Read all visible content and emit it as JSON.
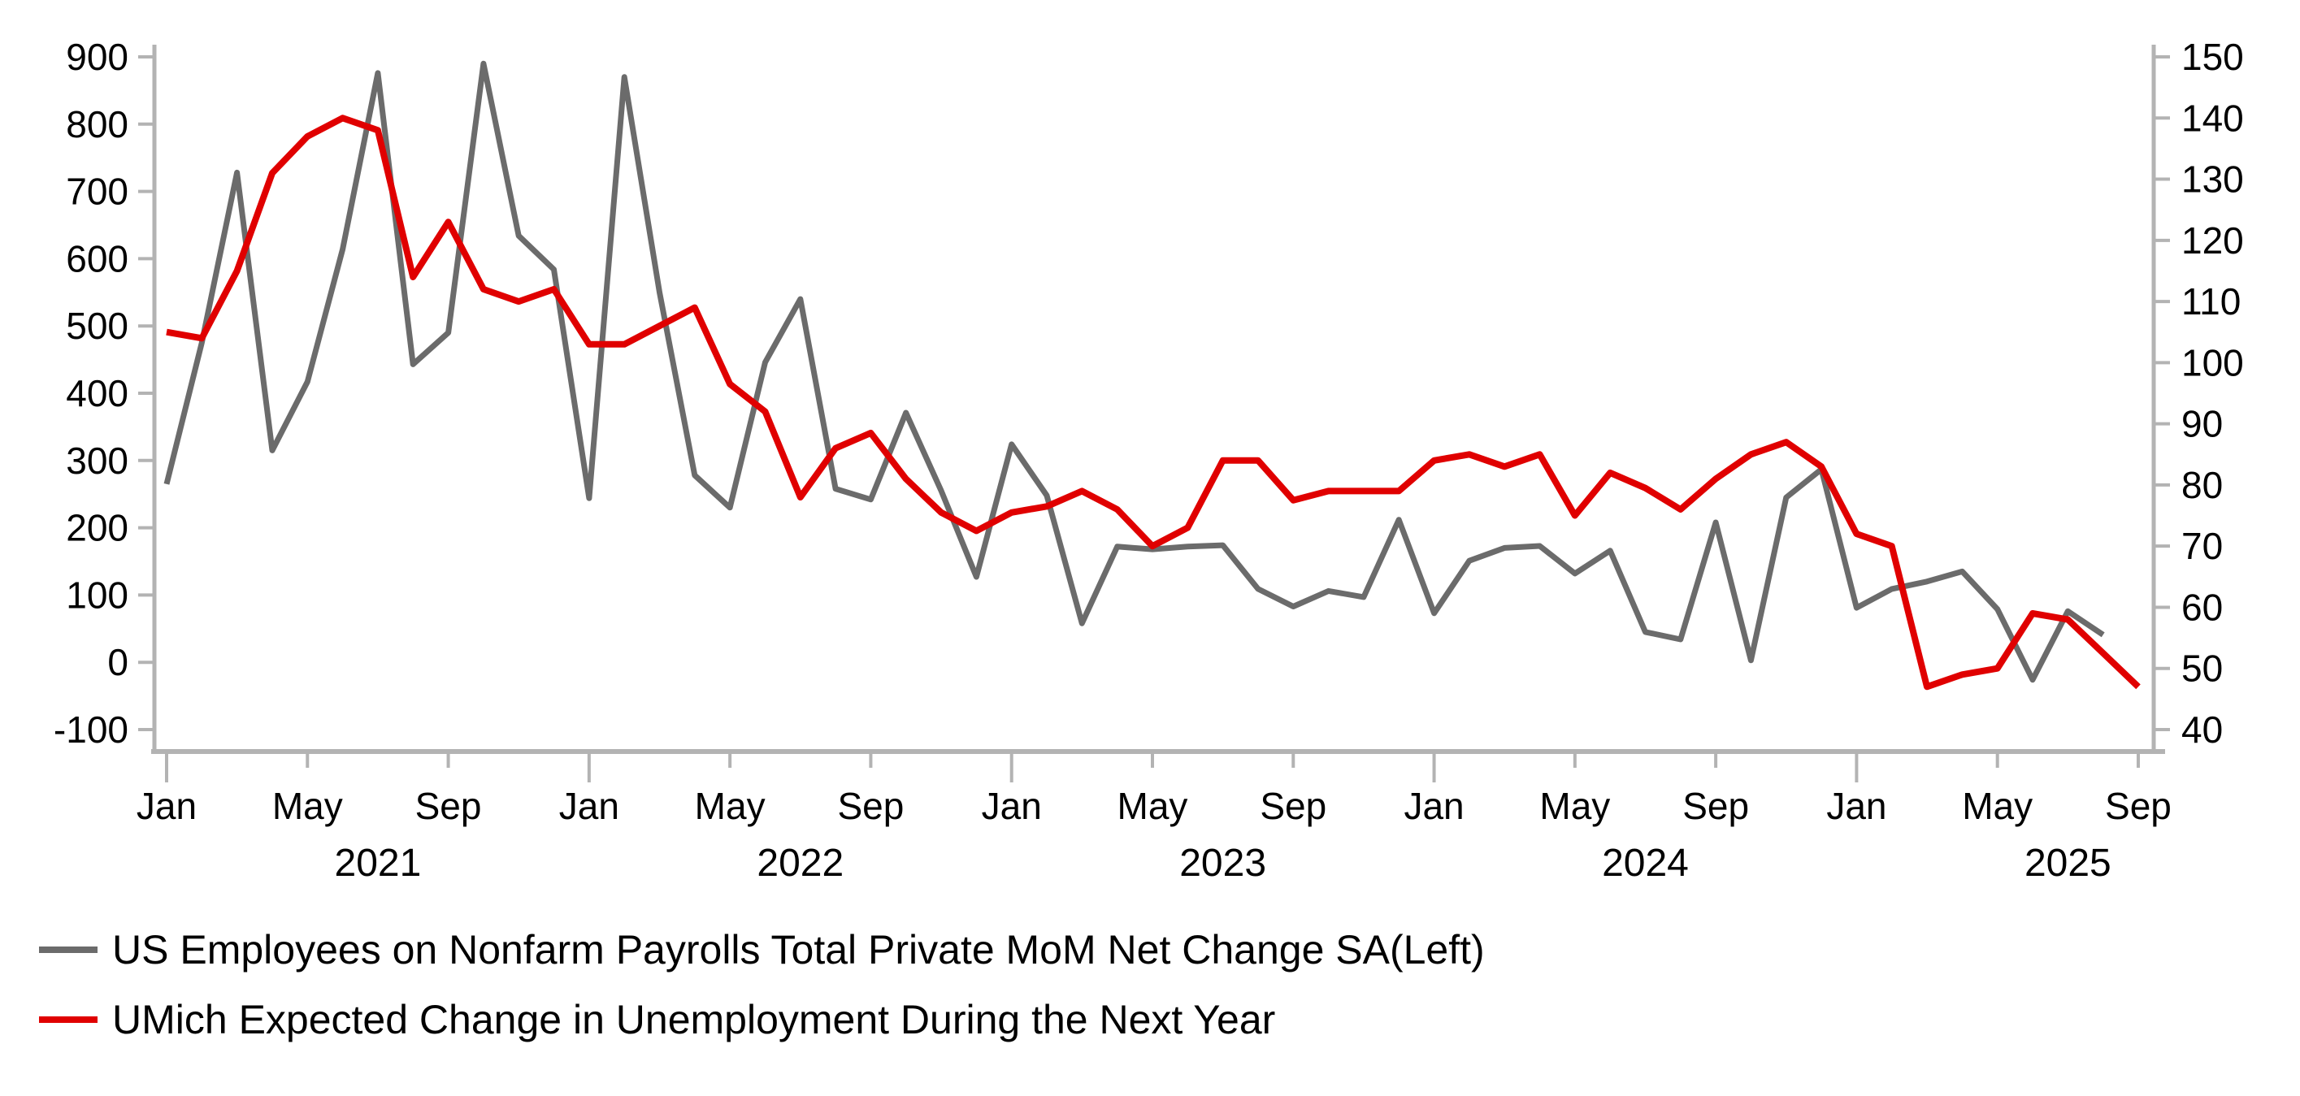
{
  "page": {
    "background_color": "#ffffff",
    "axis_color": "#b3b3b3",
    "tick_label_color": "#000000"
  },
  "legend": {
    "items": [
      {
        "label": "US Employees on Nonfarm Payrolls Total Private MoM Net Change SA(Left)",
        "color": "#6b6b6b"
      },
      {
        "label": "UMich Expected Change in Unemployment During the Next Year",
        "color": "#e00000"
      }
    ]
  },
  "chart_data": {
    "type": "line",
    "title": "",
    "x_start": "Jan 2021",
    "x_end": "Sep 2025",
    "grid": false,
    "legend_position": "bottom-left",
    "left_axis": {
      "label": "",
      "min": -100,
      "max": 900,
      "ticks": [
        900,
        800,
        700,
        600,
        500,
        400,
        300,
        200,
        100,
        0,
        -100
      ]
    },
    "right_axis": {
      "label": "",
      "min": 40,
      "max": 150,
      "ticks": [
        150,
        140,
        130,
        120,
        110,
        100,
        90,
        80,
        70,
        60,
        50,
        40
      ]
    },
    "x_axis": {
      "tick_labels": [
        {
          "month_index": 0,
          "label": "Jan",
          "major": true
        },
        {
          "month_index": 4,
          "label": "May",
          "major": false
        },
        {
          "month_index": 8,
          "label": "Sep",
          "major": false
        },
        {
          "month_index": 12,
          "label": "Jan",
          "major": true
        },
        {
          "month_index": 16,
          "label": "May",
          "major": false
        },
        {
          "month_index": 20,
          "label": "Sep",
          "major": false
        },
        {
          "month_index": 24,
          "label": "Jan",
          "major": true
        },
        {
          "month_index": 28,
          "label": "May",
          "major": false
        },
        {
          "month_index": 32,
          "label": "Sep",
          "major": false
        },
        {
          "month_index": 36,
          "label": "Jan",
          "major": true
        },
        {
          "month_index": 40,
          "label": "May",
          "major": false
        },
        {
          "month_index": 44,
          "label": "Sep",
          "major": false
        },
        {
          "month_index": 48,
          "label": "Jan",
          "major": true
        },
        {
          "month_index": 52,
          "label": "May",
          "major": false
        },
        {
          "month_index": 56,
          "label": "Sep",
          "major": false
        }
      ],
      "year_labels": [
        {
          "month_index": 6,
          "label": "2021"
        },
        {
          "month_index": 18,
          "label": "2022"
        },
        {
          "month_index": 30,
          "label": "2023"
        },
        {
          "month_index": 42,
          "label": "2024"
        },
        {
          "month_index": 54,
          "label": "2025"
        }
      ]
    },
    "series": [
      {
        "name": "US Employees on Nonfarm Payrolls Total Private MoM Net Change SA(Left)",
        "axis": "left",
        "color": "#6b6b6b",
        "stroke_width": 7,
        "values": [
          265,
          475,
          728,
          315,
          417,
          614,
          876,
          443,
          490,
          890,
          634,
          584,
          244,
          870,
          550,
          278,
          230,
          446,
          540,
          258,
          242,
          371,
          255,
          127,
          324,
          248,
          58,
          172,
          168,
          172,
          174,
          109,
          83,
          106,
          97,
          212,
          73,
          151,
          170,
          173,
          132,
          166,
          45,
          34,
          208,
          3,
          245,
          287,
          81,
          109,
          120,
          135,
          79,
          -26,
          76,
          41
        ]
      },
      {
        "name": "UMich Expected Change in Unemployment During the Next Year",
        "axis": "right",
        "color": "#e00000",
        "stroke_width": 8,
        "values": [
          105,
          104,
          115,
          131,
          137,
          140,
          138,
          114,
          123,
          112,
          110,
          112,
          103,
          103,
          106,
          109,
          96.5,
          92,
          78,
          86,
          88.5,
          81,
          75.5,
          72.5,
          75.5,
          76.5,
          79,
          76,
          70,
          73,
          84,
          84,
          77.5,
          79,
          79,
          79,
          84,
          85,
          83,
          85,
          75,
          82,
          79.5,
          76,
          81,
          85,
          87,
          83,
          72,
          70,
          47,
          49,
          50,
          59,
          58,
          52.5,
          47
        ]
      }
    ]
  }
}
